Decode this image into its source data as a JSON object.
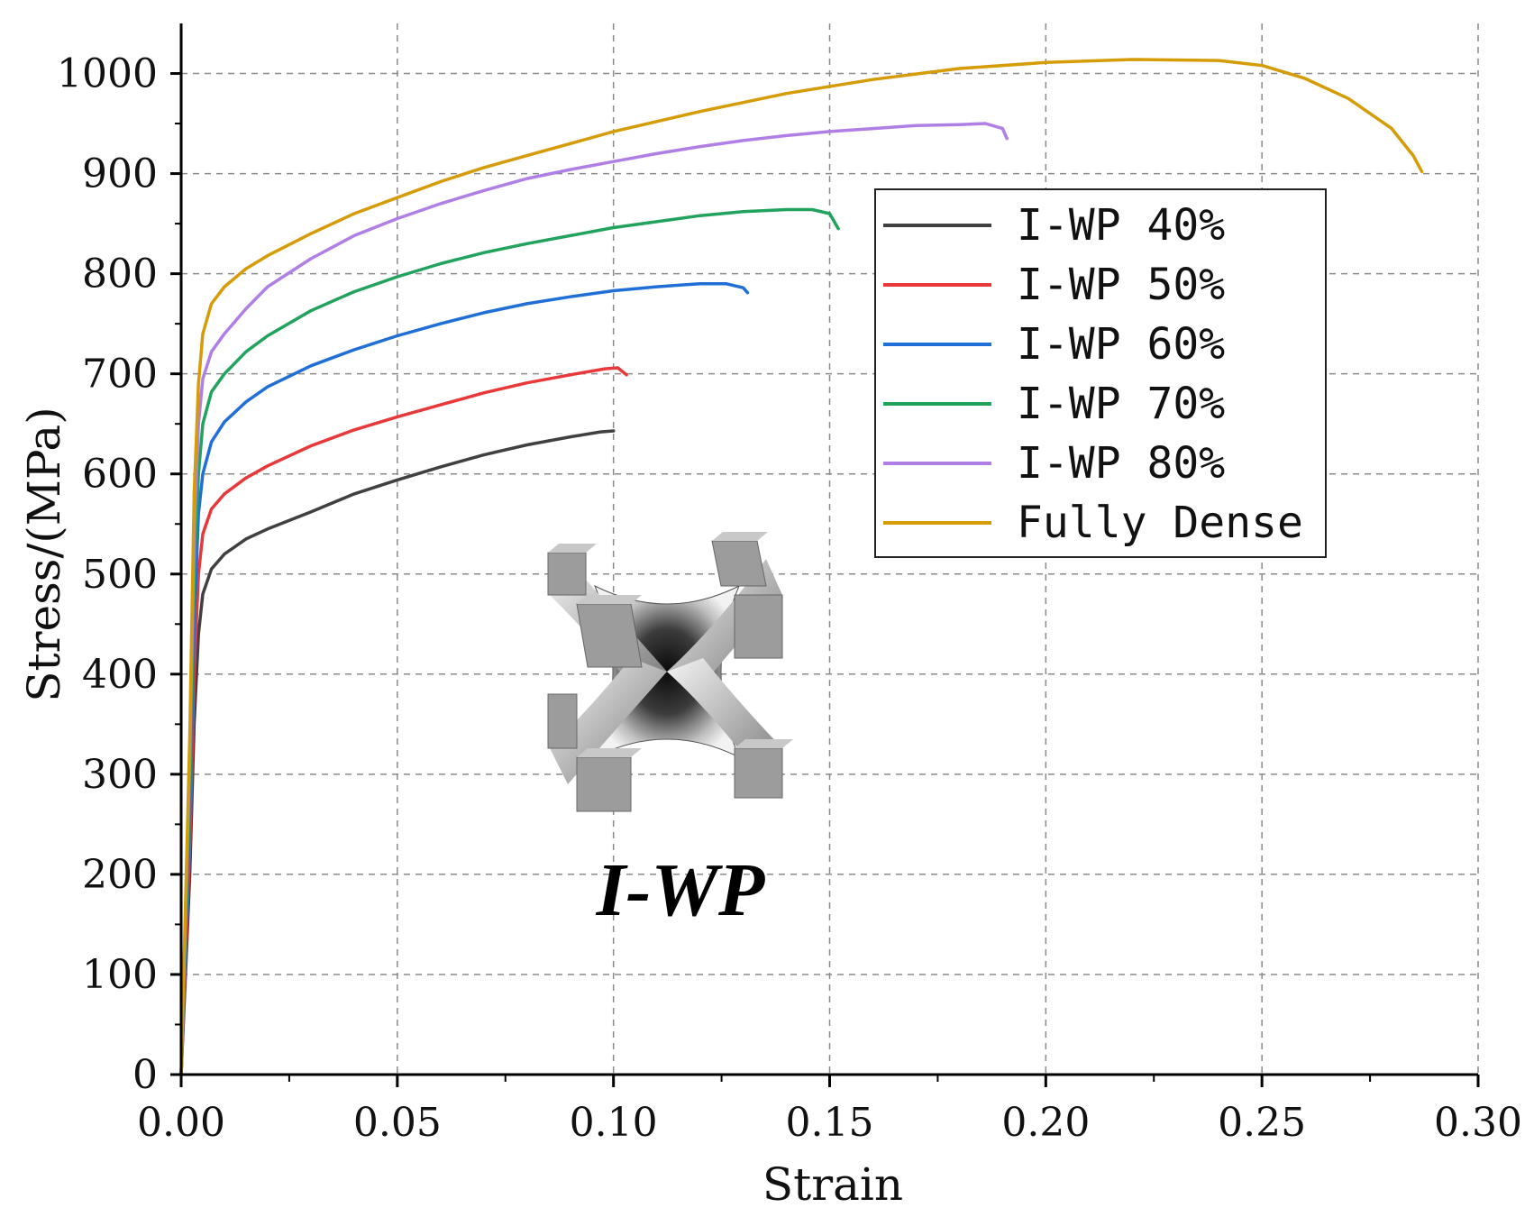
{
  "chart_data": {
    "type": "line",
    "title": "",
    "xlabel": "Strain",
    "ylabel": "Stress/(MPa)",
    "xlim": [
      0,
      0.3
    ],
    "ylim": [
      0,
      1050
    ],
    "x_ticks": [
      "0.00",
      "0.05",
      "0.10",
      "0.15",
      "0.20",
      "0.25",
      "0.30"
    ],
    "y_ticks": [
      "0",
      "100",
      "200",
      "300",
      "400",
      "500",
      "600",
      "700",
      "800",
      "900",
      "1000"
    ],
    "grid": true,
    "grid_style": "dashed",
    "legend_position": "right-middle",
    "inset_label": "I-WP",
    "series": [
      {
        "name": "I-WP 40%",
        "color": "#404040",
        "points": [
          [
            0,
            0
          ],
          [
            0.002,
            200
          ],
          [
            0.003,
            350
          ],
          [
            0.004,
            440
          ],
          [
            0.005,
            480
          ],
          [
            0.007,
            505
          ],
          [
            0.01,
            520
          ],
          [
            0.015,
            535
          ],
          [
            0.02,
            545
          ],
          [
            0.03,
            562
          ],
          [
            0.04,
            580
          ],
          [
            0.05,
            594
          ],
          [
            0.06,
            607
          ],
          [
            0.07,
            619
          ],
          [
            0.08,
            629
          ],
          [
            0.09,
            637
          ],
          [
            0.097,
            642
          ],
          [
            0.1,
            643
          ]
        ]
      },
      {
        "name": "I-WP 50%",
        "color": "#e8393a",
        "points": [
          [
            0,
            0
          ],
          [
            0.002,
            230
          ],
          [
            0.003,
            400
          ],
          [
            0.004,
            500
          ],
          [
            0.005,
            540
          ],
          [
            0.007,
            565
          ],
          [
            0.01,
            580
          ],
          [
            0.015,
            596
          ],
          [
            0.02,
            608
          ],
          [
            0.03,
            628
          ],
          [
            0.04,
            644
          ],
          [
            0.05,
            657
          ],
          [
            0.06,
            669
          ],
          [
            0.07,
            681
          ],
          [
            0.08,
            691
          ],
          [
            0.09,
            699
          ],
          [
            0.098,
            705
          ],
          [
            0.101,
            706
          ],
          [
            0.103,
            699
          ]
        ]
      },
      {
        "name": "I-WP 60%",
        "color": "#1f6fd6",
        "points": [
          [
            0,
            0
          ],
          [
            0.002,
            260
          ],
          [
            0.003,
            450
          ],
          [
            0.004,
            560
          ],
          [
            0.005,
            600
          ],
          [
            0.007,
            632
          ],
          [
            0.01,
            652
          ],
          [
            0.015,
            672
          ],
          [
            0.02,
            687
          ],
          [
            0.03,
            708
          ],
          [
            0.04,
            724
          ],
          [
            0.05,
            738
          ],
          [
            0.06,
            750
          ],
          [
            0.07,
            761
          ],
          [
            0.08,
            770
          ],
          [
            0.09,
            777
          ],
          [
            0.1,
            783
          ],
          [
            0.11,
            787
          ],
          [
            0.12,
            790
          ],
          [
            0.126,
            790
          ],
          [
            0.13,
            786
          ],
          [
            0.131,
            781
          ]
        ]
      },
      {
        "name": "I-WP 70%",
        "color": "#21a35e",
        "points": [
          [
            0,
            0
          ],
          [
            0.002,
            290
          ],
          [
            0.003,
            500
          ],
          [
            0.004,
            600
          ],
          [
            0.005,
            650
          ],
          [
            0.007,
            682
          ],
          [
            0.01,
            700
          ],
          [
            0.015,
            722
          ],
          [
            0.02,
            738
          ],
          [
            0.03,
            763
          ],
          [
            0.04,
            782
          ],
          [
            0.05,
            797
          ],
          [
            0.06,
            810
          ],
          [
            0.07,
            821
          ],
          [
            0.08,
            830
          ],
          [
            0.09,
            838
          ],
          [
            0.1,
            846
          ],
          [
            0.11,
            852
          ],
          [
            0.12,
            858
          ],
          [
            0.13,
            862
          ],
          [
            0.14,
            864
          ],
          [
            0.146,
            864
          ],
          [
            0.15,
            860
          ],
          [
            0.152,
            845
          ]
        ]
      },
      {
        "name": "I-WP 80%",
        "color": "#b07fe6",
        "points": [
          [
            0,
            0
          ],
          [
            0.002,
            320
          ],
          [
            0.003,
            540
          ],
          [
            0.004,
            650
          ],
          [
            0.005,
            695
          ],
          [
            0.007,
            722
          ],
          [
            0.01,
            740
          ],
          [
            0.015,
            765
          ],
          [
            0.02,
            787
          ],
          [
            0.03,
            815
          ],
          [
            0.04,
            838
          ],
          [
            0.05,
            855
          ],
          [
            0.06,
            870
          ],
          [
            0.07,
            883
          ],
          [
            0.08,
            895
          ],
          [
            0.09,
            904
          ],
          [
            0.1,
            912
          ],
          [
            0.11,
            920
          ],
          [
            0.12,
            927
          ],
          [
            0.13,
            933
          ],
          [
            0.14,
            938
          ],
          [
            0.15,
            942
          ],
          [
            0.16,
            945
          ],
          [
            0.17,
            948
          ],
          [
            0.18,
            949
          ],
          [
            0.186,
            950
          ],
          [
            0.19,
            945
          ],
          [
            0.191,
            935
          ]
        ]
      },
      {
        "name": "Fully Dense",
        "color": "#d69c08",
        "points": [
          [
            0,
            0
          ],
          [
            0.002,
            340
          ],
          [
            0.003,
            580
          ],
          [
            0.004,
            690
          ],
          [
            0.005,
            740
          ],
          [
            0.007,
            770
          ],
          [
            0.01,
            787
          ],
          [
            0.015,
            805
          ],
          [
            0.02,
            818
          ],
          [
            0.03,
            840
          ],
          [
            0.04,
            860
          ],
          [
            0.05,
            876
          ],
          [
            0.06,
            892
          ],
          [
            0.07,
            906
          ],
          [
            0.08,
            918
          ],
          [
            0.09,
            930
          ],
          [
            0.1,
            942
          ],
          [
            0.12,
            962
          ],
          [
            0.14,
            980
          ],
          [
            0.16,
            994
          ],
          [
            0.18,
            1005
          ],
          [
            0.2,
            1011
          ],
          [
            0.22,
            1014
          ],
          [
            0.24,
            1013
          ],
          [
            0.25,
            1008
          ],
          [
            0.26,
            995
          ],
          [
            0.27,
            975
          ],
          [
            0.28,
            945
          ],
          [
            0.285,
            918
          ],
          [
            0.287,
            902
          ]
        ]
      }
    ]
  }
}
